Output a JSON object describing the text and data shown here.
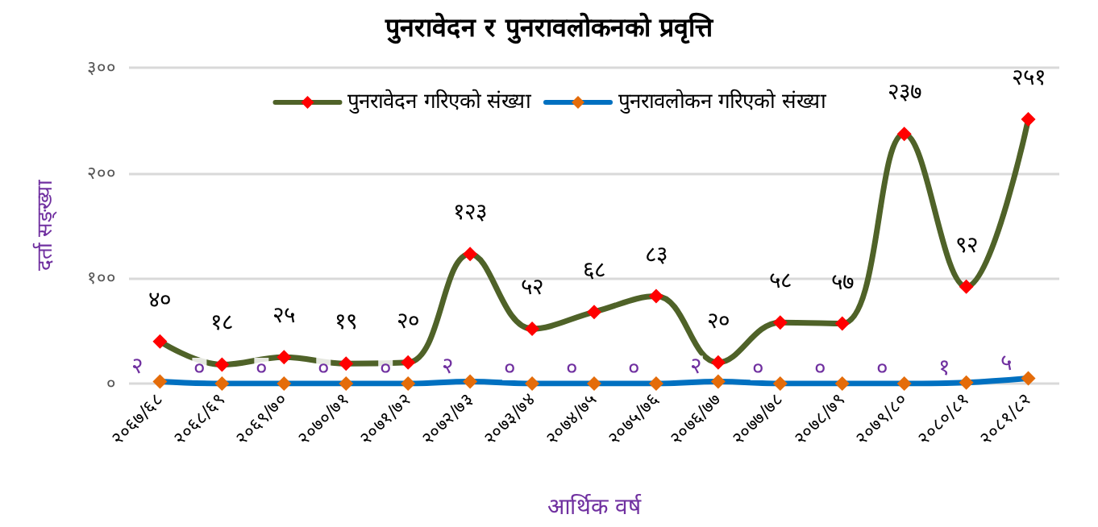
{
  "chart_data": {
    "type": "line",
    "title": "पुनरावेदन र पुनरावलोकनको प्रवृत्ति",
    "xlabel": "आर्थिक वर्ष",
    "ylabel": "दर्ता सङ्ख्या",
    "categories": [
      "२०६७/६८",
      "२०६८/६९",
      "२०६९/७०",
      "२०७०/७१",
      "२०७१/७२",
      "२०७२/७३",
      "२०७३/७४",
      "२०७४/७५",
      "२०७५/७६",
      "२०७६/७७",
      "२०७७/७८",
      "२०७८/७९",
      "२०७९/८०",
      "२०८०/८१",
      "२०८१/८२"
    ],
    "series": [
      {
        "name": "पुनरावेदन गरिएको संख्या",
        "color": "#4f6228",
        "colors": [
          "#ff0000",
          "#ff0000",
          "#ff0000",
          "#ff0000",
          "#ff0000",
          "#ff0000",
          "#ff0000",
          "#ff0000",
          "#ff0000",
          "#ff0000",
          "#ff0000",
          "#ff0000",
          "#ff0000",
          "#ff0000",
          "#ff0000"
        ],
        "values": [
          40,
          18,
          25,
          19,
          20,
          123,
          52,
          68,
          83,
          20,
          58,
          57,
          237,
          92,
          251
        ],
        "value_labels": [
          "४०",
          "१८",
          "२५",
          "१९",
          "२०",
          "१२३",
          "५२",
          "६८",
          "८३",
          "२०",
          "५८",
          "५७",
          "२३७",
          "९२",
          "२५१"
        ]
      },
      {
        "name": "पुनरावलोकन गरिएको संख्या",
        "color": "#0070c0",
        "colors": [
          "#e46c0a",
          "#e46c0a",
          "#e46c0a",
          "#e46c0a",
          "#e46c0a",
          "#e46c0a",
          "#e46c0a",
          "#e46c0a",
          "#e46c0a",
          "#e46c0a",
          "#e46c0a",
          "#e46c0a",
          "#e46c0a",
          "#e46c0a",
          "#e46c0a"
        ],
        "values": [
          2,
          0,
          0,
          0,
          0,
          2,
          0,
          0,
          0,
          2,
          0,
          0,
          0,
          1,
          5
        ],
        "value_labels": [
          "२",
          "०",
          "०",
          "०",
          "०",
          "२",
          "०",
          "०",
          "०",
          "२",
          "०",
          "०",
          "०",
          "१",
          "५"
        ]
      }
    ],
    "ylim": [
      0,
      300
    ],
    "yticks": [
      {
        "value": 0,
        "label": "०"
      },
      {
        "value": 100,
        "label": "१००"
      },
      {
        "value": 200,
        "label": "२००"
      },
      {
        "value": 300,
        "label": "३००"
      }
    ],
    "grid": "y",
    "legend": "top",
    "marker": "diamond",
    "line_style": "solid"
  }
}
